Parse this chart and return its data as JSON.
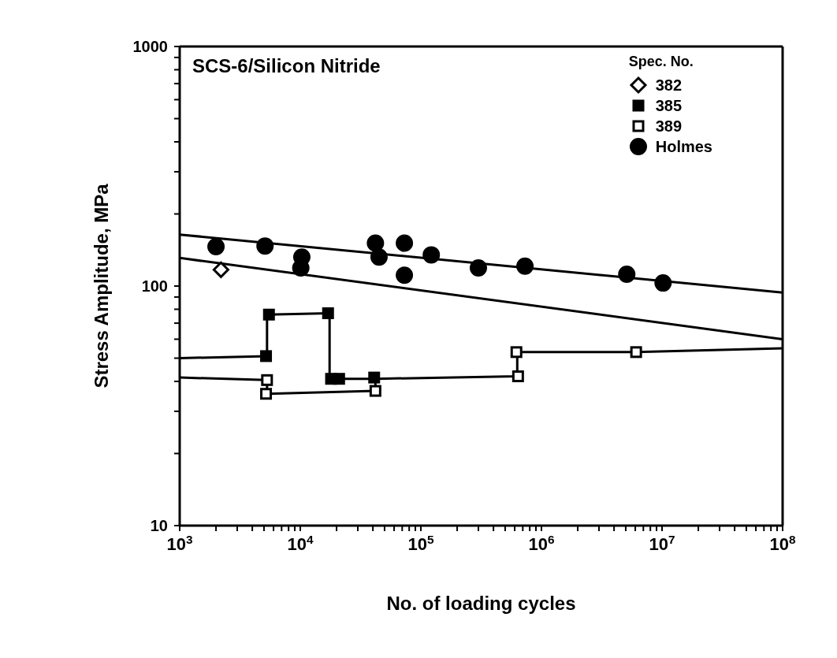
{
  "chart_data": {
    "type": "scatter",
    "title": "SCS-6/Silicon Nitride",
    "xlabel": "No. of loading cycles",
    "ylabel": "Stress Amplitude, MPa",
    "legend_title": "Spec. No.",
    "legend": "top right",
    "log": "xy",
    "xlim": [
      1000,
      100000000
    ],
    "ylim": [
      10,
      1000
    ],
    "xticks": [
      {
        "value": 1000,
        "label": "10$^{3}$"
      },
      {
        "value": 2000,
        "label": null
      },
      {
        "value": 3000,
        "label": null
      },
      {
        "value": 4000,
        "label": null
      },
      {
        "value": 5000,
        "label": null
      },
      {
        "value": 6000,
        "label": null
      },
      {
        "value": 7000,
        "label": null
      },
      {
        "value": 8000,
        "label": null
      },
      {
        "value": 9000,
        "label": null
      },
      {
        "value": 10000,
        "label": "10$^{4}$"
      },
      {
        "value": 20000,
        "label": null
      },
      {
        "value": 30000,
        "label": null
      },
      {
        "value": 40000,
        "label": null
      },
      {
        "value": 50000,
        "label": null
      },
      {
        "value": 60000,
        "label": null
      },
      {
        "value": 70000,
        "label": null
      },
      {
        "value": 80000,
        "label": null
      },
      {
        "value": 90000,
        "label": null
      },
      {
        "value": 100000,
        "label": "10$^{5}$"
      },
      {
        "value": 200000,
        "label": null
      },
      {
        "value": 300000,
        "label": null
      },
      {
        "value": 400000,
        "label": null
      },
      {
        "value": 500000,
        "label": null
      },
      {
        "value": 600000,
        "label": null
      },
      {
        "value": 700000,
        "label": null
      },
      {
        "value": 800000,
        "label": null
      },
      {
        "value": 900000,
        "label": null
      },
      {
        "value": 1000000,
        "label": "10$^{6}$"
      },
      {
        "value": 2000000,
        "label": null
      },
      {
        "value": 3000000,
        "label": null
      },
      {
        "value": 4000000,
        "label": null
      },
      {
        "value": 5000000,
        "label": null
      },
      {
        "value": 6000000,
        "label": null
      },
      {
        "value": 7000000,
        "label": null
      },
      {
        "value": 8000000,
        "label": null
      },
      {
        "value": 9000000,
        "label": null
      },
      {
        "value": 10000000,
        "label": "10$^{7}$"
      },
      {
        "value": 20000000,
        "label": null
      },
      {
        "value": 30000000,
        "label": null
      },
      {
        "value": 40000000,
        "label": null
      },
      {
        "value": 50000000,
        "label": null
      },
      {
        "value": 60000000,
        "label": null
      },
      {
        "value": 70000000,
        "label": null
      },
      {
        "value": 80000000,
        "label": null
      },
      {
        "value": 90000000,
        "label": null
      },
      {
        "value": 100000000,
        "label": "10$^{8}$"
      }
    ],
    "yticks": [
      10,
      {
        "value": 20,
        "label": null
      },
      {
        "value": 30,
        "label": null
      },
      {
        "value": 40,
        "label": null
      },
      {
        "value": 50,
        "label": null
      },
      {
        "value": 60,
        "label": null
      },
      {
        "value": 70,
        "label": null
      },
      {
        "value": 80,
        "label": null
      },
      {
        "value": 90,
        "label": null
      },
      100,
      {
        "value": 200,
        "label": null
      },
      {
        "value": 300,
        "label": null
      },
      {
        "value": 400,
        "label": null
      },
      {
        "value": 500,
        "label": null
      },
      {
        "value": 600,
        "label": null
      },
      {
        "value": 700,
        "label": null
      },
      {
        "value": 800,
        "label": null
      },
      {
        "value": 900,
        "label": null
      },
      1000
    ],
    "series": [
      {
        "type": "line",
        "color": "#000000",
        "marker": "none",
        "x": [
          1000,
          100000000
        ],
        "values": [
          164,
          94
        ]
      },
      {
        "type": "line",
        "color": "#000000",
        "marker": "none",
        "x": [
          1000,
          100000000
        ],
        "values": [
          131,
          60
        ]
      },
      {
        "type": "line",
        "color": "#000000",
        "marker": "none",
        "x": [
          1000,
          5300,
          5300,
          17500,
          17500,
          41000
        ],
        "values": [
          50,
          51,
          76,
          77,
          41,
          41
        ]
      },
      {
        "type": "line",
        "color": "#000000",
        "marker": "none",
        "x": [
          1000,
          5300,
          5300,
          42000,
          42000,
          630000,
          630000,
          6100000,
          100000000
        ],
        "values": [
          41.5,
          40.5,
          35.5,
          36.5,
          41,
          42,
          53,
          53,
          55
        ]
      },
      {
        "name": "382",
        "color": "#ffffff",
        "marker": "diamond",
        "x": [
          2200
        ],
        "values": [
          117
        ]
      },
      {
        "name": "385",
        "color": "#000000",
        "marker": "square",
        "x": [
          5500,
          17000,
          5200,
          18000,
          21000,
          41000
        ],
        "values": [
          76,
          77,
          51,
          41,
          41,
          41.5
        ]
      },
      {
        "name": "389",
        "color": "#ffffff",
        "marker": "square",
        "x": [
          5300,
          5200,
          42000,
          620000,
          640000,
          6100000
        ],
        "values": [
          40.5,
          35.5,
          36.5,
          53,
          42,
          53
        ]
      },
      {
        "name": "Holmes",
        "color": "#000000",
        "marker": "circle",
        "x": [
          2000,
          5100,
          10300,
          10100,
          42000,
          45000,
          73000,
          73000,
          122000,
          300000,
          730000,
          5100000,
          10200000
        ],
        "values": [
          146,
          147,
          132,
          119,
          151,
          132,
          151,
          111,
          135,
          119,
          121,
          112,
          103
        ]
      }
    ]
  }
}
